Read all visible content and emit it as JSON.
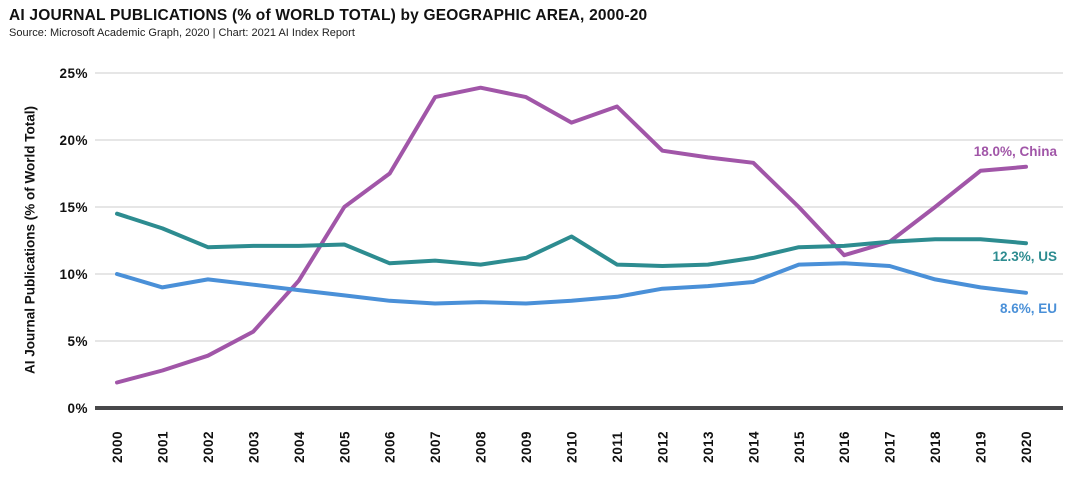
{
  "header": {
    "title": "AI JOURNAL PUBLICATIONS (% of WORLD TOTAL) by GEOGRAPHIC AREA, 2000-20",
    "source": "Source: Microsoft Academic Graph, 2020 | Chart: 2021 AI Index Report"
  },
  "chart_data": {
    "type": "line",
    "title": "AI JOURNAL PUBLICATIONS (% of WORLD TOTAL) by GEOGRAPHIC AREA, 2000-20",
    "source": "Source: Microsoft Academic Graph, 2020 | Chart: 2021 AI Index Report",
    "xlabel": "",
    "ylabel": "AI Journal Publications (% of World Total)",
    "x": [
      2000,
      2001,
      2002,
      2003,
      2004,
      2005,
      2006,
      2007,
      2008,
      2009,
      2010,
      2011,
      2012,
      2013,
      2014,
      2015,
      2016,
      2017,
      2018,
      2019,
      2020
    ],
    "ylim": [
      0,
      25
    ],
    "yticks": [
      0,
      5,
      10,
      15,
      20,
      25
    ],
    "ytick_suffix": "%",
    "grid": "horizontal",
    "legend_position": "line-end-labels-right",
    "series": [
      {
        "name": "China",
        "color": "#A156A8",
        "end_label": "18.0%, China",
        "values": [
          1.9,
          2.8,
          3.9,
          5.7,
          9.5,
          15.0,
          17.5,
          23.2,
          23.9,
          23.2,
          21.3,
          22.5,
          19.2,
          18.7,
          18.3,
          15.0,
          11.4,
          12.4,
          15.0,
          17.7,
          18.0
        ]
      },
      {
        "name": "US",
        "color": "#2D8C90",
        "end_label": "12.3%, US",
        "values": [
          14.5,
          13.4,
          12.0,
          12.1,
          12.1,
          12.2,
          10.8,
          11.0,
          10.7,
          11.2,
          12.8,
          10.7,
          10.6,
          10.7,
          11.2,
          12.0,
          12.1,
          12.4,
          12.6,
          12.6,
          12.3
        ]
      },
      {
        "name": "EU",
        "color": "#4A90D8",
        "end_label": "8.6%, EU",
        "values": [
          10.0,
          9.0,
          9.6,
          9.2,
          8.8,
          8.4,
          8.0,
          7.8,
          7.9,
          7.8,
          8.0,
          8.3,
          8.9,
          9.1,
          9.4,
          10.7,
          10.8,
          10.6,
          9.6,
          9.0,
          8.6
        ]
      }
    ],
    "colors": {
      "gridline": "#D8D8D8",
      "axis_baseline": "#48484A",
      "tick_text": "#111111"
    }
  }
}
